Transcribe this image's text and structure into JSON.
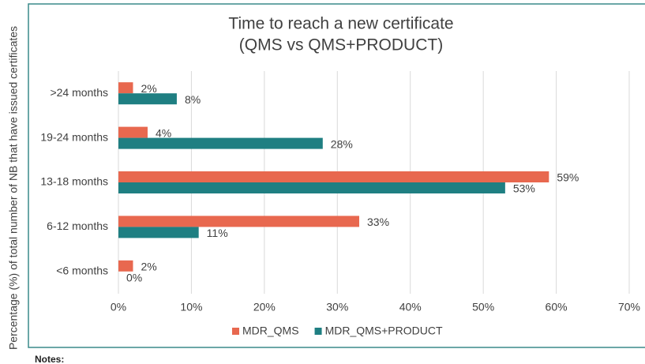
{
  "chart_data": {
    "type": "hbar",
    "title": [
      "Time to reach a new certificate",
      "(QMS vs QMS+PRODUCT)"
    ],
    "ylabel": "Percentage (%) of total number of NB that have issued certificates",
    "categories": [
      ">24 months",
      "19-24 months",
      "13-18 months",
      "6-12 months",
      "<6 months"
    ],
    "series": [
      {
        "name": "MDR_QMS",
        "color": "#e8684f",
        "values": [
          2,
          4,
          59,
          33,
          2
        ],
        "value_labels": [
          "2%",
          "4%",
          "59%",
          "33%",
          "2%"
        ]
      },
      {
        "name": "MDR_QMS+PRODUCT",
        "color": "#1f7f82",
        "values": [
          8,
          28,
          53,
          11,
          0
        ],
        "value_labels": [
          "8%",
          "28%",
          "53%",
          "11%",
          "0%"
        ]
      }
    ],
    "xlim": [
      0,
      70
    ],
    "xticks": [
      {
        "value": 0,
        "label": "0%"
      },
      {
        "value": 10,
        "label": "10%"
      },
      {
        "value": 20,
        "label": "20%"
      },
      {
        "value": 30,
        "label": "30%"
      },
      {
        "value": 40,
        "label": "40%"
      },
      {
        "value": 50,
        "label": "50%"
      },
      {
        "value": 60,
        "label": "60%"
      },
      {
        "value": 70,
        "label": "70%"
      }
    ],
    "grid": true,
    "legend": "bottom"
  },
  "notes": "Notes:"
}
